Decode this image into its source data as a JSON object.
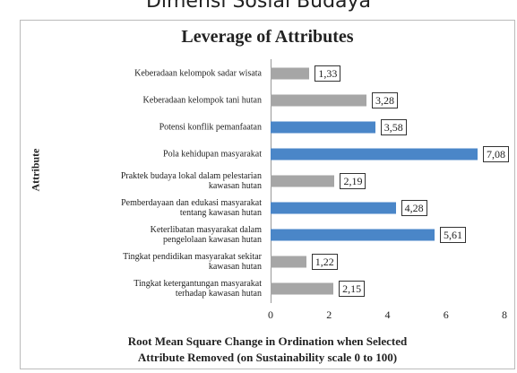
{
  "chart_data": {
    "type": "bar",
    "orientation": "horizontal",
    "supertitle": "Dimensi Sosial Budaya",
    "title": "Leverage of Attributes",
    "ylabel": "Attribute",
    "xlabel": "Root Mean Square Change in Ordination when Selected\nAttribute Removed (on Sustainability scale 0 to 100)",
    "categories": [
      "Keberadaan kelompok sadar wisata",
      "Keberadaan kelompok tani hutan",
      "Potensi konflik pemanfaatan",
      "Pola kehidupan masyarakat",
      "Praktek budaya lokal dalam pelestarian\nkawasan hutan",
      "Pemberdayaan dan edukasi masyarakat\ntentang kawasan hutan",
      "Keterlibatan masyarakat dalam\npengelolaan kawasan hutan",
      "Tingkat pendidikan masyarakat sekitar\nkawasan hutan",
      "Tingkat ketergantungan masyarakat\nterhadap kawasan hutan"
    ],
    "values": [
      1.33,
      3.28,
      3.58,
      7.08,
      2.19,
      4.28,
      5.61,
      1.22,
      2.15
    ],
    "value_labels": [
      "1,33",
      "3,28",
      "3,58",
      "7,08",
      "2,19",
      "4,28",
      "5,61",
      "1,22",
      "2,15"
    ],
    "colors": [
      "#a6a6a6",
      "#a6a6a6",
      "#4a86c8",
      "#4a86c8",
      "#a6a6a6",
      "#4a86c8",
      "#4a86c8",
      "#a6a6a6",
      "#a6a6a6"
    ],
    "xlim": [
      0,
      8
    ],
    "xticks": [
      0,
      2,
      4,
      6,
      8
    ]
  }
}
